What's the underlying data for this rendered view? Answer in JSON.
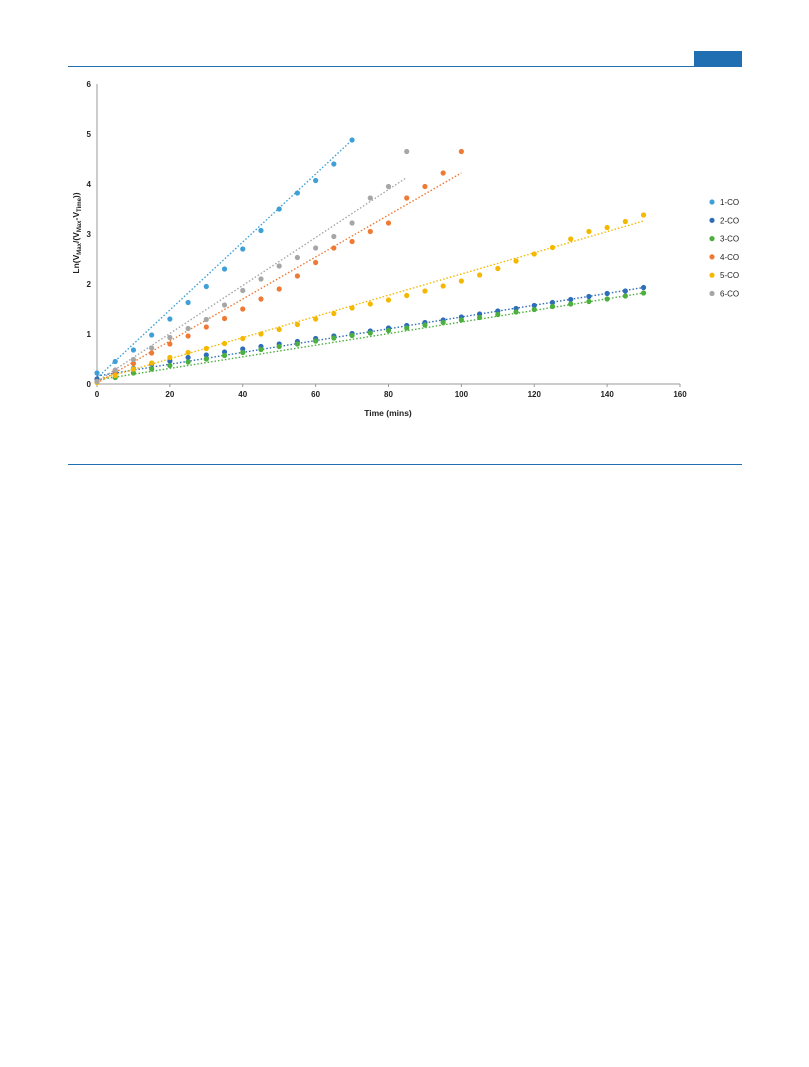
{
  "page": {
    "accent_color": "#1f6fb2"
  },
  "chart_data": {
    "type": "scatter",
    "xlabel": "Time (mins)",
    "ylabel_parts": {
      "pre": "Ln(V",
      "sub1": "Max",
      "mid": "/(V",
      "sub2": "Max",
      "dash": "-V",
      "sub3": "Time",
      "post": "))"
    },
    "xlim": [
      0,
      160
    ],
    "ylim": [
      0,
      6
    ],
    "xticks": [
      0,
      20,
      40,
      60,
      80,
      100,
      120,
      140,
      160
    ],
    "yticks": [
      0,
      1,
      2,
      3,
      4,
      5,
      6
    ],
    "grid": false,
    "legend_position": "right",
    "trendlines": "linear, dotted",
    "series": [
      {
        "name": "1-CO",
        "color": "#3fa0d8",
        "x": [
          0,
          5,
          10,
          15,
          20,
          25,
          30,
          35,
          40,
          45,
          50,
          55,
          60,
          65,
          70
        ],
        "y": [
          0.22,
          0.45,
          0.68,
          0.98,
          1.3,
          1.63,
          1.95,
          2.3,
          2.7,
          3.07,
          3.5,
          3.82,
          4.07,
          4.4,
          4.88
        ],
        "fit": [
          0.12,
          0.068
        ]
      },
      {
        "name": "2-CO",
        "color": "#2e6eb8",
        "x": [
          0,
          5,
          10,
          15,
          20,
          25,
          30,
          35,
          40,
          45,
          50,
          55,
          60,
          65,
          70,
          75,
          80,
          85,
          90,
          95,
          100,
          105,
          110,
          115,
          120,
          125,
          130,
          135,
          140,
          145,
          150
        ],
        "y": [
          0.1,
          0.23,
          0.31,
          0.4,
          0.46,
          0.53,
          0.58,
          0.64,
          0.7,
          0.75,
          0.8,
          0.85,
          0.91,
          0.96,
          1.01,
          1.06,
          1.12,
          1.17,
          1.23,
          1.28,
          1.34,
          1.4,
          1.46,
          1.51,
          1.57,
          1.63,
          1.69,
          1.75,
          1.81,
          1.86,
          1.93
        ],
        "fit": [
          0.16,
          0.0118
        ]
      },
      {
        "name": "3-CO",
        "color": "#4caf3e",
        "x": [
          0,
          5,
          10,
          15,
          20,
          25,
          30,
          35,
          40,
          45,
          50,
          55,
          60,
          65,
          70,
          75,
          80,
          85,
          90,
          95,
          100,
          105,
          110,
          115,
          120,
          125,
          130,
          135,
          140,
          145,
          150
        ],
        "y": [
          0.05,
          0.13,
          0.22,
          0.3,
          0.37,
          0.44,
          0.5,
          0.57,
          0.63,
          0.69,
          0.75,
          0.8,
          0.86,
          0.92,
          0.97,
          1.02,
          1.07,
          1.12,
          1.18,
          1.23,
          1.28,
          1.33,
          1.39,
          1.44,
          1.49,
          1.55,
          1.6,
          1.65,
          1.7,
          1.76,
          1.82
        ],
        "fit": [
          0.08,
          0.0116
        ]
      },
      {
        "name": "4-CO",
        "color": "#ee7a35",
        "x": [
          0,
          5,
          10,
          15,
          20,
          25,
          30,
          35,
          40,
          45,
          50,
          55,
          60,
          65,
          70,
          75,
          80,
          85,
          90,
          95,
          100
        ],
        "y": [
          0.05,
          0.25,
          0.41,
          0.62,
          0.8,
          0.96,
          1.14,
          1.31,
          1.5,
          1.7,
          1.9,
          2.16,
          2.43,
          2.72,
          2.85,
          3.05,
          3.22,
          3.72,
          3.95,
          4.22,
          4.65
        ],
        "fit": [
          0.02,
          0.042
        ]
      },
      {
        "name": "5-CO",
        "color": "#f5b800",
        "x": [
          0,
          5,
          10,
          15,
          20,
          25,
          30,
          35,
          40,
          45,
          50,
          55,
          60,
          65,
          70,
          75,
          80,
          85,
          90,
          95,
          100,
          105,
          110,
          115,
          120,
          125,
          130,
          135,
          140,
          145,
          150
        ],
        "y": [
          0.03,
          0.17,
          0.3,
          0.42,
          0.53,
          0.63,
          0.71,
          0.81,
          0.91,
          1.0,
          1.09,
          1.19,
          1.3,
          1.41,
          1.52,
          1.6,
          1.68,
          1.77,
          1.86,
          1.96,
          2.06,
          2.18,
          2.31,
          2.46,
          2.6,
          2.73,
          2.9,
          3.05,
          3.13,
          3.25,
          3.38
        ],
        "fit": [
          0.08,
          0.0212
        ]
      },
      {
        "name": "6-CO",
        "color": "#a6a6a6",
        "x": [
          0,
          5,
          10,
          15,
          20,
          25,
          30,
          35,
          40,
          45,
          50,
          55,
          60,
          65,
          70,
          75,
          80,
          85
        ],
        "y": [
          0.05,
          0.28,
          0.49,
          0.72,
          0.93,
          1.11,
          1.29,
          1.58,
          1.87,
          2.1,
          2.36,
          2.53,
          2.72,
          2.95,
          3.22,
          3.72,
          3.95,
          4.65
        ],
        "fit": [
          0.05,
          0.048
        ]
      }
    ]
  }
}
